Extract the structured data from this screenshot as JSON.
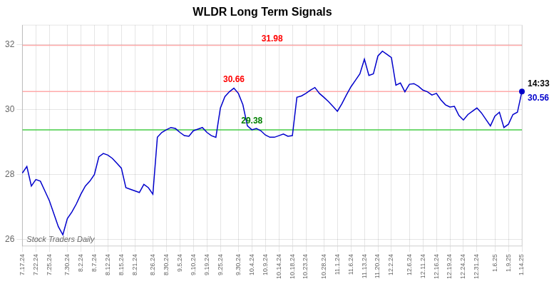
{
  "chart_data": {
    "type": "line",
    "title": "WLDR Long Term Signals",
    "categories": [
      "7.17.24",
      null,
      null,
      "7.22.24",
      null,
      null,
      "7.25.24",
      null,
      null,
      null,
      "7.30.24",
      null,
      null,
      "8.2.24",
      null,
      null,
      "8.7.24",
      null,
      null,
      "8.12.24",
      null,
      null,
      "8.15.24",
      null,
      null,
      "8.21.24",
      null,
      null,
      null,
      "8.26.24",
      null,
      null,
      "8.30.24",
      null,
      null,
      "9.5.24",
      null,
      null,
      "9.10.24",
      null,
      null,
      "9.19.24",
      null,
      null,
      "9.25.24",
      null,
      null,
      null,
      "9.30.24",
      null,
      null,
      "10.4.24",
      null,
      null,
      "10.9.24",
      null,
      null,
      "10.14.24",
      null,
      null,
      "10.18.24",
      null,
      null,
      "10.23.24",
      null,
      null,
      null,
      "10.28.24",
      null,
      null,
      "11.1.24",
      null,
      null,
      "11.6.24",
      null,
      null,
      "11.13.24",
      null,
      null,
      "11.20.24",
      null,
      null,
      "12.2.24",
      null,
      null,
      null,
      "12.6.24",
      null,
      null,
      "12.11.24",
      null,
      null,
      "12.16.24",
      null,
      null,
      "12.19.24",
      null,
      null,
      "12.24.24",
      null,
      null,
      "12.31.24",
      null,
      null,
      null,
      "1.6.25",
      null,
      null,
      "1.9.25",
      null,
      null,
      "1.14.25"
    ],
    "values": [
      28.05,
      28.25,
      27.65,
      27.85,
      27.8,
      27.5,
      27.2,
      26.8,
      26.4,
      26.15,
      26.65,
      26.85,
      27.1,
      27.4,
      27.65,
      27.8,
      28.0,
      28.55,
      28.65,
      28.6,
      28.5,
      28.35,
      28.2,
      27.6,
      27.55,
      27.5,
      27.45,
      27.7,
      27.6,
      27.4,
      29.15,
      29.3,
      29.38,
      29.45,
      29.42,
      29.3,
      29.2,
      29.18,
      29.35,
      29.4,
      29.45,
      29.3,
      29.2,
      29.15,
      30.05,
      30.4,
      30.55,
      30.66,
      30.5,
      30.15,
      29.5,
      29.38,
      29.42,
      29.35,
      29.22,
      29.15,
      29.15,
      29.2,
      29.25,
      29.18,
      29.2,
      30.38,
      30.42,
      30.5,
      30.6,
      30.68,
      30.5,
      30.38,
      30.25,
      30.1,
      29.95,
      30.18,
      30.45,
      30.7,
      30.9,
      31.1,
      31.55,
      31.05,
      31.1,
      31.65,
      31.8,
      31.7,
      31.6,
      30.75,
      30.82,
      30.55,
      30.78,
      30.8,
      30.72,
      30.6,
      30.55,
      30.45,
      30.5,
      30.3,
      30.15,
      30.08,
      30.1,
      29.82,
      29.68,
      29.85,
      29.95,
      30.05,
      29.9,
      29.7,
      29.5,
      29.8,
      29.92,
      29.45,
      29.55,
      29.85,
      29.92,
      30.56
    ],
    "color": "#0000cc",
    "ylim": [
      25.8,
      32.6
    ],
    "yticks": [
      26,
      28,
      30,
      32
    ],
    "grid": true,
    "hlines": [
      {
        "value": 31.98,
        "color": "#ffaaaa",
        "label": "31.98",
        "label_color": "red"
      },
      {
        "value": 30.56,
        "color": "#ffaaaa"
      },
      {
        "value": 29.38,
        "color": "#44cc44"
      }
    ],
    "annotations": [
      {
        "text": "30.66",
        "index": 47,
        "value": 30.66,
        "color": "red"
      },
      {
        "text": "29.38",
        "index": 51,
        "value": 29.38,
        "color": "green"
      },
      {
        "text": "14:33",
        "index": 111,
        "color": "black"
      },
      {
        "text": "30.56",
        "index": 111,
        "value": 30.56,
        "color": "#0000cc",
        "marker": "circle"
      }
    ],
    "watermark": "Stock Traders Daily"
  }
}
